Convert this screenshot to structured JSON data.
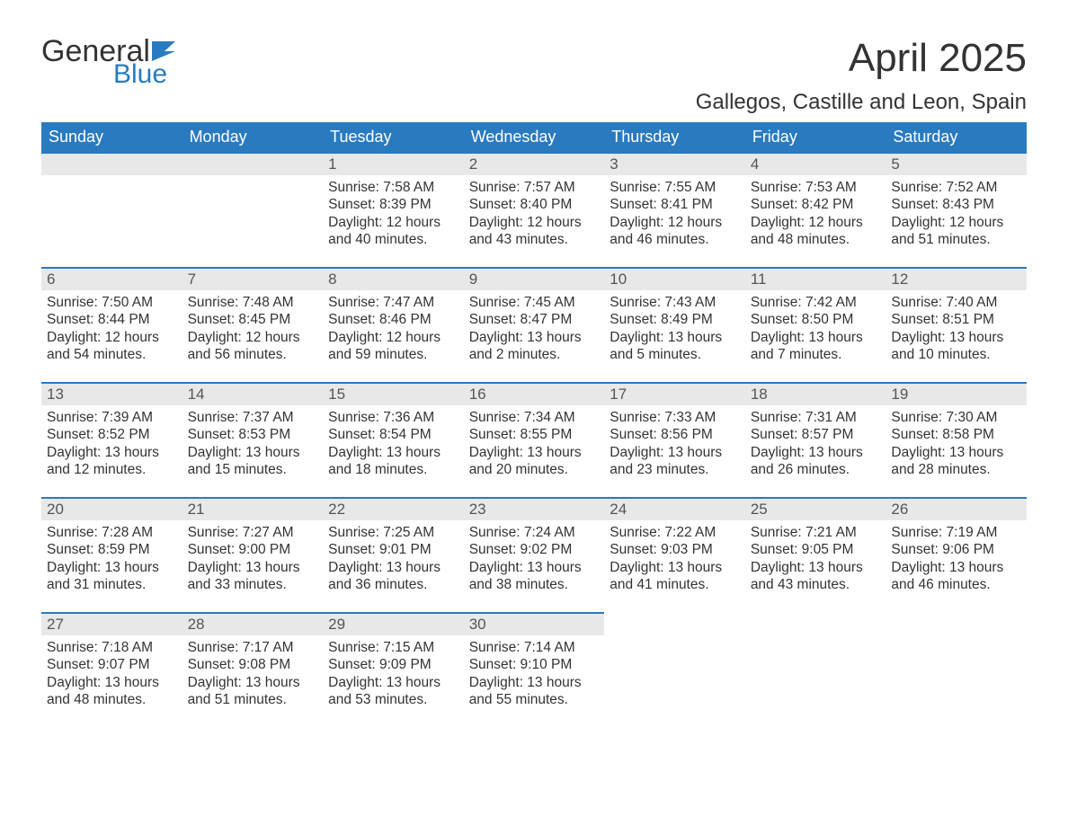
{
  "logo": {
    "text1": "General",
    "text2": "Blue",
    "flag_color": "#2a7ac0"
  },
  "title": "April 2025",
  "location": "Gallegos, Castille and Leon, Spain",
  "colors": {
    "header_bg": "#2a7ac0",
    "header_text": "#ffffff",
    "daynum_bg": "#e8e8e8",
    "daynum_text": "#555555",
    "body_text": "#333333",
    "row_border": "#2a7ac0",
    "page_bg": "#ffffff"
  },
  "fonts": {
    "title_size": 44,
    "location_size": 24,
    "header_size": 18,
    "daynum_size": 17,
    "body_size": 15.5
  },
  "weekdays": [
    "Sunday",
    "Monday",
    "Tuesday",
    "Wednesday",
    "Thursday",
    "Friday",
    "Saturday"
  ],
  "first_weekday_index": 2,
  "days": [
    {
      "n": 1,
      "sunrise": "7:58 AM",
      "sunset": "8:39 PM",
      "daylight": "12 hours and 40 minutes."
    },
    {
      "n": 2,
      "sunrise": "7:57 AM",
      "sunset": "8:40 PM",
      "daylight": "12 hours and 43 minutes."
    },
    {
      "n": 3,
      "sunrise": "7:55 AM",
      "sunset": "8:41 PM",
      "daylight": "12 hours and 46 minutes."
    },
    {
      "n": 4,
      "sunrise": "7:53 AM",
      "sunset": "8:42 PM",
      "daylight": "12 hours and 48 minutes."
    },
    {
      "n": 5,
      "sunrise": "7:52 AM",
      "sunset": "8:43 PM",
      "daylight": "12 hours and 51 minutes."
    },
    {
      "n": 6,
      "sunrise": "7:50 AM",
      "sunset": "8:44 PM",
      "daylight": "12 hours and 54 minutes."
    },
    {
      "n": 7,
      "sunrise": "7:48 AM",
      "sunset": "8:45 PM",
      "daylight": "12 hours and 56 minutes."
    },
    {
      "n": 8,
      "sunrise": "7:47 AM",
      "sunset": "8:46 PM",
      "daylight": "12 hours and 59 minutes."
    },
    {
      "n": 9,
      "sunrise": "7:45 AM",
      "sunset": "8:47 PM",
      "daylight": "13 hours and 2 minutes."
    },
    {
      "n": 10,
      "sunrise": "7:43 AM",
      "sunset": "8:49 PM",
      "daylight": "13 hours and 5 minutes."
    },
    {
      "n": 11,
      "sunrise": "7:42 AM",
      "sunset": "8:50 PM",
      "daylight": "13 hours and 7 minutes."
    },
    {
      "n": 12,
      "sunrise": "7:40 AM",
      "sunset": "8:51 PM",
      "daylight": "13 hours and 10 minutes."
    },
    {
      "n": 13,
      "sunrise": "7:39 AM",
      "sunset": "8:52 PM",
      "daylight": "13 hours and 12 minutes."
    },
    {
      "n": 14,
      "sunrise": "7:37 AM",
      "sunset": "8:53 PM",
      "daylight": "13 hours and 15 minutes."
    },
    {
      "n": 15,
      "sunrise": "7:36 AM",
      "sunset": "8:54 PM",
      "daylight": "13 hours and 18 minutes."
    },
    {
      "n": 16,
      "sunrise": "7:34 AM",
      "sunset": "8:55 PM",
      "daylight": "13 hours and 20 minutes."
    },
    {
      "n": 17,
      "sunrise": "7:33 AM",
      "sunset": "8:56 PM",
      "daylight": "13 hours and 23 minutes."
    },
    {
      "n": 18,
      "sunrise": "7:31 AM",
      "sunset": "8:57 PM",
      "daylight": "13 hours and 26 minutes."
    },
    {
      "n": 19,
      "sunrise": "7:30 AM",
      "sunset": "8:58 PM",
      "daylight": "13 hours and 28 minutes."
    },
    {
      "n": 20,
      "sunrise": "7:28 AM",
      "sunset": "8:59 PM",
      "daylight": "13 hours and 31 minutes."
    },
    {
      "n": 21,
      "sunrise": "7:27 AM",
      "sunset": "9:00 PM",
      "daylight": "13 hours and 33 minutes."
    },
    {
      "n": 22,
      "sunrise": "7:25 AM",
      "sunset": "9:01 PM",
      "daylight": "13 hours and 36 minutes."
    },
    {
      "n": 23,
      "sunrise": "7:24 AM",
      "sunset": "9:02 PM",
      "daylight": "13 hours and 38 minutes."
    },
    {
      "n": 24,
      "sunrise": "7:22 AM",
      "sunset": "9:03 PM",
      "daylight": "13 hours and 41 minutes."
    },
    {
      "n": 25,
      "sunrise": "7:21 AM",
      "sunset": "9:05 PM",
      "daylight": "13 hours and 43 minutes."
    },
    {
      "n": 26,
      "sunrise": "7:19 AM",
      "sunset": "9:06 PM",
      "daylight": "13 hours and 46 minutes."
    },
    {
      "n": 27,
      "sunrise": "7:18 AM",
      "sunset": "9:07 PM",
      "daylight": "13 hours and 48 minutes."
    },
    {
      "n": 28,
      "sunrise": "7:17 AM",
      "sunset": "9:08 PM",
      "daylight": "13 hours and 51 minutes."
    },
    {
      "n": 29,
      "sunrise": "7:15 AM",
      "sunset": "9:09 PM",
      "daylight": "13 hours and 53 minutes."
    },
    {
      "n": 30,
      "sunrise": "7:14 AM",
      "sunset": "9:10 PM",
      "daylight": "13 hours and 55 minutes."
    }
  ],
  "labels": {
    "sunrise": "Sunrise:",
    "sunset": "Sunset:",
    "daylight": "Daylight:"
  }
}
